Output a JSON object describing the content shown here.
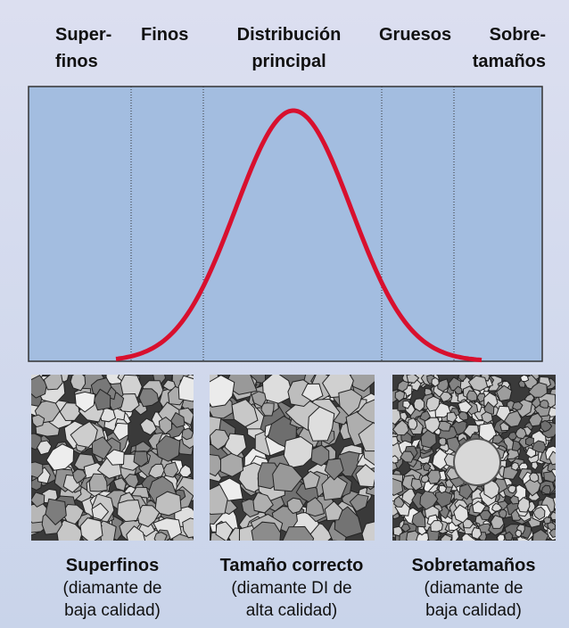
{
  "header": {
    "labels": [
      {
        "lines": [
          "Super-",
          "finos"
        ]
      },
      {
        "lines": [
          "Finos"
        ]
      },
      {
        "lines": [
          "Distribución",
          "principal"
        ]
      },
      {
        "lines": [
          "Gruesos"
        ]
      },
      {
        "lines": [
          "Sobre-",
          "tamaños"
        ]
      }
    ]
  },
  "captions": [
    {
      "title": "Superfinos",
      "lines": [
        "(diamante de",
        "baja calidad)"
      ]
    },
    {
      "title": "Tamaño correcto",
      "lines": [
        "(diamante DI de",
        "alta calidad)"
      ]
    },
    {
      "title": "Sobretamaños",
      "lines": [
        "(diamante de",
        "baja calidad)"
      ]
    }
  ]
}
